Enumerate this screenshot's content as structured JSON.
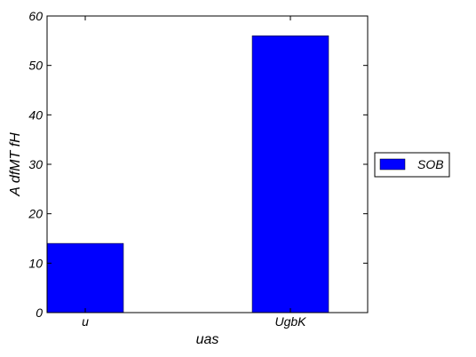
{
  "chart_data": {
    "type": "bar",
    "categories": [
      "u",
      "UgbK"
    ],
    "series": [
      {
        "name": "SOB",
        "values": [
          14,
          56
        ]
      }
    ],
    "xlabel": "uas",
    "ylabel": "A dfMT fH",
    "ylim": [
      0,
      60
    ],
    "yticks": [
      0,
      10,
      20,
      30,
      40,
      50,
      60
    ],
    "grid": false,
    "legend_position": "outside-right",
    "bar_color": "#0000ff"
  }
}
